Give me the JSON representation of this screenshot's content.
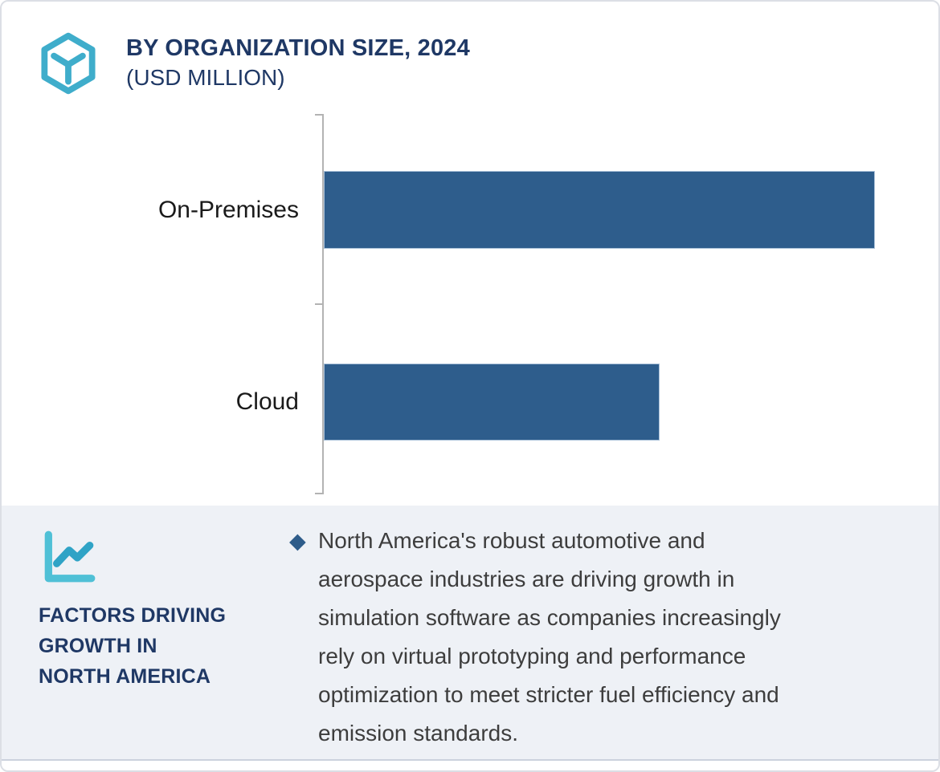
{
  "header": {
    "title": "BY ORGANIZATION SIZE, 2024",
    "subtitle": "(USD MILLION)",
    "logo_icon": "hexagon-cube-logo-icon"
  },
  "chart_data": {
    "type": "bar",
    "orientation": "horizontal",
    "title": "BY ORGANIZATION SIZE, 2024",
    "subtitle": "(USD MILLION)",
    "unit": "USD Million",
    "categories": [
      "On-Premises",
      "Cloud"
    ],
    "values": [
      100,
      61
    ],
    "values_note": "No numeric axis ticks, gridlines or data labels are shown; values are relative bar lengths with On-Premises = 100.",
    "xlabel": "",
    "ylabel": "",
    "grid": false,
    "legend": false,
    "bar_color": "#2e5d8c",
    "axis_color": "#b3b3b3"
  },
  "insights": {
    "icon": "line-chart-icon",
    "heading_lines": [
      "FACTORS DRIVING",
      "GROWTH IN",
      "NORTH AMERICA"
    ],
    "heading": "FACTORS DRIVING GROWTH IN NORTH AMERICA",
    "bullet_marker": "◆",
    "bullet_lines": [
      "North America's robust automotive and",
      "aerospace industries are driving growth in",
      "simulation software as companies increasingly",
      "rely on virtual prototyping and performance",
      "optimization to meet stricter fuel efficiency and",
      "emission standards."
    ],
    "bullet_text": "North America's robust automotive and aerospace industries are driving growth in simulation software as companies increasingly rely on virtual prototyping and performance optimization to meet stricter fuel efficiency and emission standards."
  },
  "colors": {
    "bar": "#2e5d8c",
    "navy": "#1f3865",
    "teal": "#3fadcb",
    "teal_light": "#4fc0d6",
    "teal_dark": "#2fa3c6",
    "panel_bg": "#eef1f6",
    "panel_border": "#ccd2dd",
    "axis": "#b3b3b3",
    "diamond": "#2e5c8a",
    "body_text": "#3d3d3d",
    "label_text": "#1a1a1a"
  }
}
